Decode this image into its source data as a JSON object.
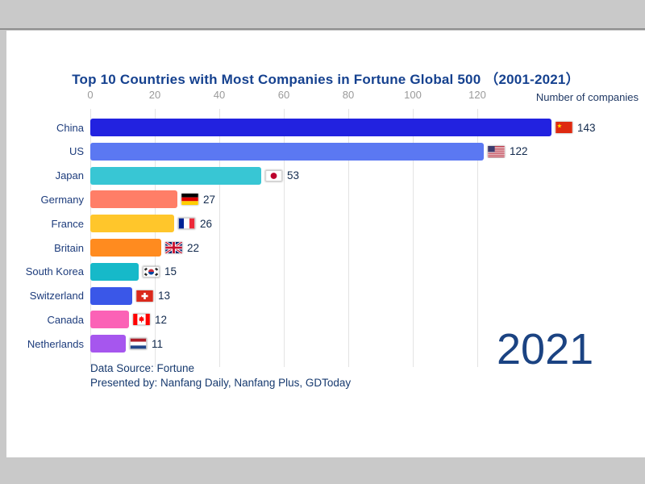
{
  "chart_data": {
    "type": "bar",
    "orientation": "horizontal",
    "title": "Top 10 Countries with Most Companies in Fortune Global 500 （2001-2021）",
    "axis_label": "Number of companies",
    "x_ticks": [
      0,
      20,
      40,
      60,
      80,
      100,
      120
    ],
    "xlim": [
      0,
      168
    ],
    "grid": true,
    "categories": [
      "China",
      "US",
      "Japan",
      "Germany",
      "France",
      "Britain",
      "South Korea",
      "Switzerland",
      "Canada",
      "Netherlands"
    ],
    "values": [
      143,
      122,
      53,
      27,
      26,
      22,
      15,
      13,
      12,
      11
    ],
    "bar_colors": [
      "#2222E0",
      "#5B78F2",
      "#38C6D4",
      "#FF7E67",
      "#FFC62B",
      "#FF8B1F",
      "#16B9C9",
      "#3A57E8",
      "#FB62B6",
      "#A656EE"
    ],
    "flags": [
      "china",
      "us",
      "japan",
      "germany",
      "france",
      "britain",
      "south-korea",
      "switzerland",
      "canada",
      "netherlands"
    ],
    "year": "2021",
    "footer_line1": "Data Source: Fortune",
    "footer_line2": "Presented by: Nanfang Daily, Nanfang Plus, GDToday",
    "colors": {
      "title": "#15418f",
      "labels": "#1d3c7c",
      "ticks": "#9a9a9a",
      "year": "#1b4382"
    }
  }
}
